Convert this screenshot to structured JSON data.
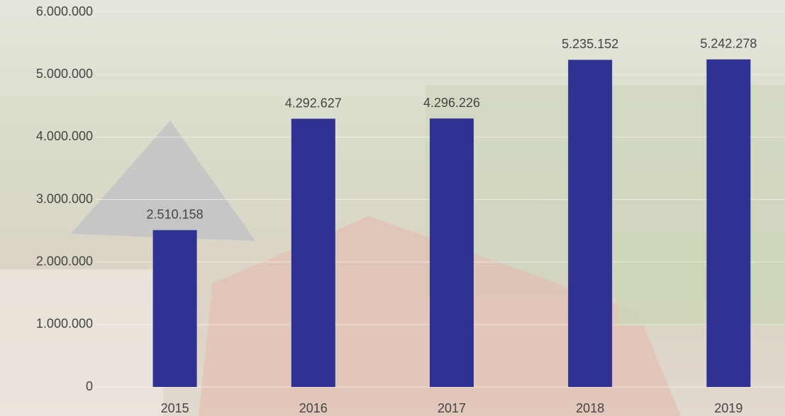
{
  "chart_data": {
    "type": "bar",
    "categories": [
      "2015",
      "2016",
      "2017",
      "2018",
      "2019"
    ],
    "values": [
      2510158,
      4292627,
      4296226,
      5235152,
      5242278
    ],
    "value_labels": [
      "2.510.158",
      "4.292.627",
      "4.296.226",
      "5.235.152",
      "5.242.278"
    ],
    "color": "#2f3193",
    "ylim": [
      0,
      6000000
    ],
    "yticks": [
      0,
      {
        "value": 1000000,
        "label": "1.000.000"
      },
      {
        "value": 2000000,
        "label": "2.000.000"
      },
      {
        "value": 3000000,
        "label": "3.000.000"
      },
      {
        "value": 4000000,
        "label": "4.000.000"
      },
      {
        "value": 5000000,
        "label": "5.000.000"
      },
      {
        "value": 6000000,
        "label": "6.000.000"
      }
    ],
    "grid": true
  }
}
